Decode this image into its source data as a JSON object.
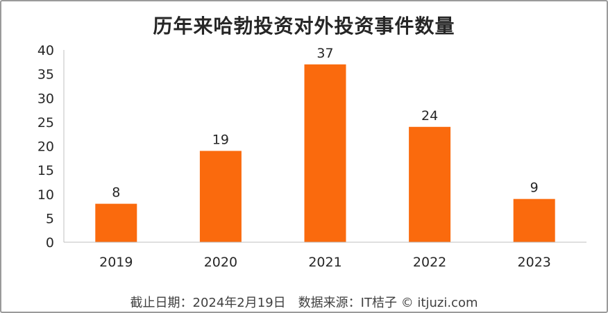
{
  "chart_data": {
    "type": "bar",
    "title": "历年来哈勃投资对外投资事件数量",
    "categories": [
      "2019",
      "2020",
      "2021",
      "2022",
      "2023"
    ],
    "values": [
      8,
      19,
      37,
      24,
      9
    ],
    "ylim": [
      0,
      40
    ],
    "yticks": [
      0,
      5,
      10,
      15,
      20,
      25,
      30,
      35,
      40
    ],
    "xlabel": "",
    "ylabel": "",
    "grid": false,
    "data_labels": true,
    "bar_color": "#FA6A0D"
  },
  "footnote": "截止日期：2024年2月19日　数据来源：IT桔子 © itjuzi.com"
}
